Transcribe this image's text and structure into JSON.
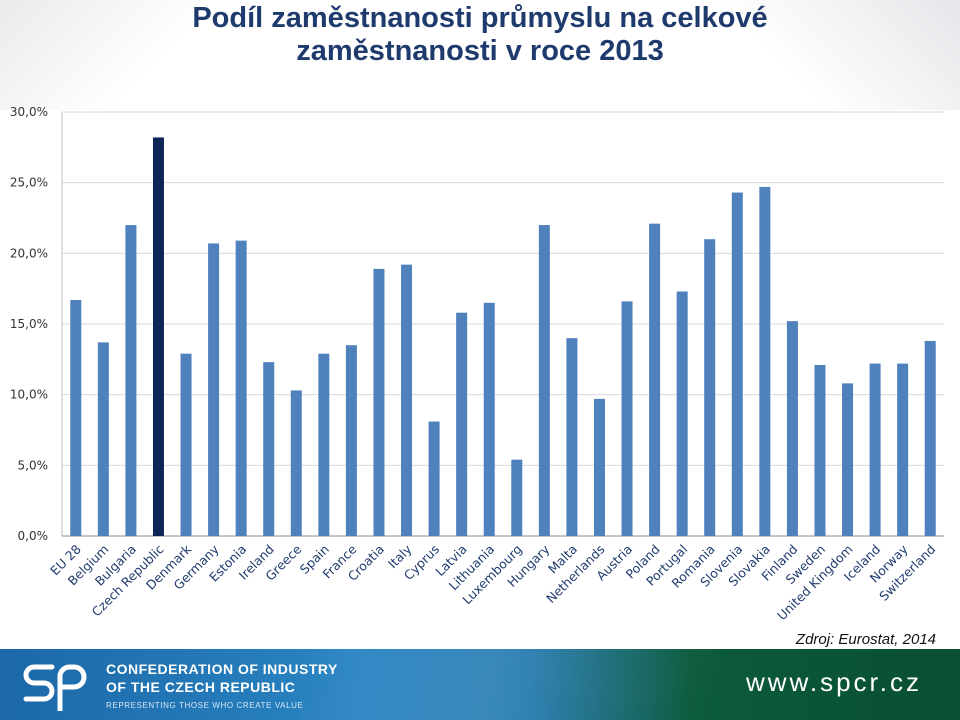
{
  "title_lines": [
    "Podíl zaměstnanosti průmyslu na celkové",
    "zaměstnanosti v roce 2013"
  ],
  "source": "Zdroj: Eurostat, 2014",
  "footer": {
    "org_line1": "CONFEDERATION OF INDUSTRY",
    "org_line2": "OF THE CZECH REPUBLIC",
    "tagline": "REPRESENTING THOSE WHO CREATE VALUE",
    "website": "www.spcr.cz",
    "logo_text": "sp"
  },
  "colors": {
    "bar": "#4f81bd",
    "highlight_bar": "#0f2557",
    "title": "#1f3b6e",
    "grid": "#d9d9d9"
  },
  "chart_data": {
    "type": "bar",
    "title": "Podíl zaměstnanosti průmyslu na celkové zaměstnanosti v roce 2013",
    "xlabel": "",
    "ylabel": "",
    "ylim": [
      0,
      30
    ],
    "yticks": [
      0,
      5,
      10,
      15,
      20,
      25,
      30
    ],
    "ytick_labels": [
      "0,0%",
      "5,0%",
      "10,0%",
      "15,0%",
      "20,0%",
      "25,0%",
      "30,0%"
    ],
    "grid": true,
    "legend": "none",
    "highlight": "Czech Republic",
    "categories": [
      "EU 28",
      "Belgium",
      "Bulgaria",
      "Czech Republic",
      "Denmark",
      "Germany",
      "Estonia",
      "Ireland",
      "Greece",
      "Spain",
      "France",
      "Croatia",
      "Italy",
      "Cyprus",
      "Latvia",
      "Lithuania",
      "Luxembourg",
      "Hungary",
      "Malta",
      "Netherlands",
      "Austria",
      "Poland",
      "Portugal",
      "Romania",
      "Slovenia",
      "Slovakia",
      "Finland",
      "Sweden",
      "United Kingdom",
      "Iceland",
      "Norway",
      "Switzerland"
    ],
    "values": [
      16.7,
      13.7,
      22.0,
      28.2,
      12.9,
      20.7,
      20.9,
      12.3,
      10.3,
      12.9,
      13.5,
      18.9,
      19.2,
      8.1,
      15.8,
      16.5,
      5.4,
      22.0,
      14.0,
      9.7,
      16.6,
      22.1,
      17.3,
      21.0,
      24.3,
      24.7,
      15.2,
      12.1,
      10.8,
      12.2,
      12.2,
      13.8
    ]
  }
}
